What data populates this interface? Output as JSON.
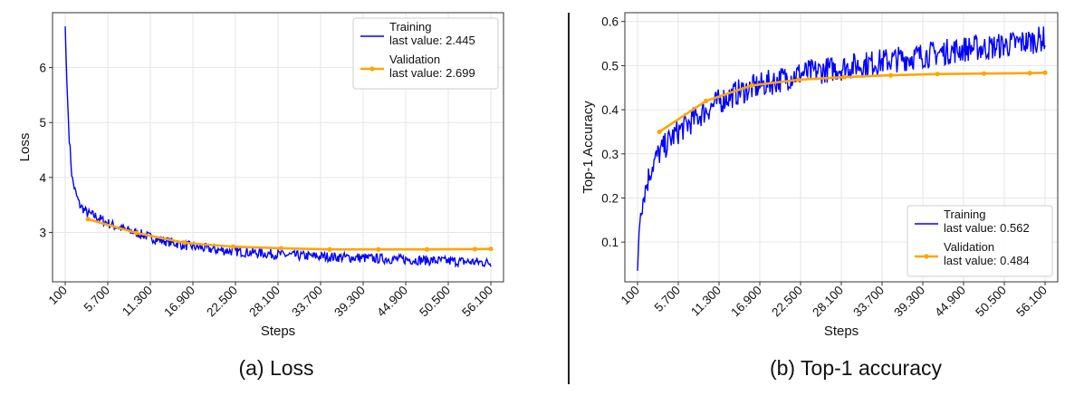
{
  "captions": [
    "(a) Loss",
    "(b) Top-1 accuracy"
  ],
  "colors": {
    "training": "#0000ff",
    "validation": "#ffa500"
  },
  "chart_data": [
    {
      "type": "line",
      "xlabel": "Steps",
      "ylabel": "Loss",
      "xlim": [
        100,
        56100
      ],
      "ylim": [
        2.1,
        7.0
      ],
      "xticks": [
        100,
        5700,
        11300,
        16900,
        22500,
        28100,
        33700,
        39300,
        44900,
        50500,
        56100
      ],
      "xtick_labels": [
        "100",
        "5.700",
        "11.300",
        "16.900",
        "22.500",
        "28.100",
        "33.700",
        "39.300",
        "44.900",
        "50.500",
        "56.100"
      ],
      "yticks": [
        3,
        4,
        5,
        6
      ],
      "ytick_labels": [
        "3",
        "4",
        "5",
        "6"
      ],
      "grid": true,
      "legend": "top-right",
      "series": [
        {
          "name": "Training",
          "legend_value": "last value: 2.445",
          "x": [
            100,
            300,
            600,
            1000,
            1500,
            2000,
            3000,
            4000,
            5000,
            6000,
            8000,
            10000,
            12000,
            14000,
            16000,
            18000,
            20000,
            22000,
            24000,
            26000,
            28000,
            30000,
            32000,
            34000,
            36000,
            38000,
            40000,
            42000,
            44000,
            46000,
            48000,
            50000,
            52000,
            54000,
            56100
          ],
          "y": [
            6.75,
            5.8,
            4.8,
            4.0,
            3.7,
            3.5,
            3.35,
            3.3,
            3.22,
            3.15,
            3.05,
            2.97,
            2.88,
            2.82,
            2.76,
            2.72,
            2.68,
            2.66,
            2.64,
            2.62,
            2.6,
            2.58,
            2.57,
            2.56,
            2.55,
            2.54,
            2.53,
            2.52,
            2.51,
            2.5,
            2.49,
            2.48,
            2.47,
            2.46,
            2.445
          ]
        },
        {
          "name": "Validation",
          "legend_value": "last value: 2.699",
          "x": [
            3100,
            9500,
            15800,
            22200,
            28500,
            34900,
            41300,
            47700,
            54000,
            56100
          ],
          "y": [
            3.24,
            2.99,
            2.81,
            2.74,
            2.71,
            2.69,
            2.69,
            2.69,
            2.695,
            2.699
          ]
        }
      ],
      "noise_amplitude": 0.09
    },
    {
      "type": "line",
      "xlabel": "Steps",
      "ylabel": "Top-1 Accuracy",
      "xlim": [
        100,
        56100
      ],
      "ylim": [
        0.01,
        0.62
      ],
      "xticks": [
        100,
        5700,
        11300,
        16900,
        22500,
        28100,
        33700,
        39300,
        44900,
        50500,
        56100
      ],
      "xtick_labels": [
        "100",
        "5.700",
        "11.300",
        "16.900",
        "22.500",
        "28.100",
        "33.700",
        "39.300",
        "44.900",
        "50.500",
        "56.100"
      ],
      "yticks": [
        0.1,
        0.2,
        0.3,
        0.4,
        0.5,
        0.6
      ],
      "ytick_labels": [
        "0.1",
        "0.2",
        "0.3",
        "0.4",
        "0.5",
        "0.6"
      ],
      "grid": true,
      "legend": "bottom-right",
      "series": [
        {
          "name": "Training",
          "legend_value": "last value: 0.562",
          "x": [
            100,
            300,
            600,
            1000,
            1500,
            2000,
            3000,
            4000,
            5000,
            6000,
            8000,
            10000,
            12000,
            14000,
            16000,
            18000,
            20000,
            22000,
            24000,
            26000,
            28000,
            30000,
            32000,
            34000,
            36000,
            38000,
            40000,
            42000,
            44000,
            46000,
            48000,
            50000,
            52000,
            54000,
            56100
          ],
          "y": [
            0.035,
            0.12,
            0.18,
            0.21,
            0.24,
            0.27,
            0.3,
            0.32,
            0.34,
            0.355,
            0.38,
            0.405,
            0.425,
            0.44,
            0.45,
            0.46,
            0.47,
            0.48,
            0.485,
            0.49,
            0.495,
            0.5,
            0.505,
            0.51,
            0.515,
            0.52,
            0.525,
            0.53,
            0.535,
            0.54,
            0.54,
            0.545,
            0.55,
            0.555,
            0.562
          ]
        },
        {
          "name": "Validation",
          "legend_value": "last value: 0.484",
          "x": [
            3100,
            9500,
            15800,
            22200,
            28500,
            34900,
            41300,
            47700,
            54000,
            56100
          ],
          "y": [
            0.35,
            0.42,
            0.455,
            0.468,
            0.474,
            0.478,
            0.481,
            0.482,
            0.483,
            0.484
          ]
        }
      ],
      "noise_amplitude": 0.03
    }
  ]
}
